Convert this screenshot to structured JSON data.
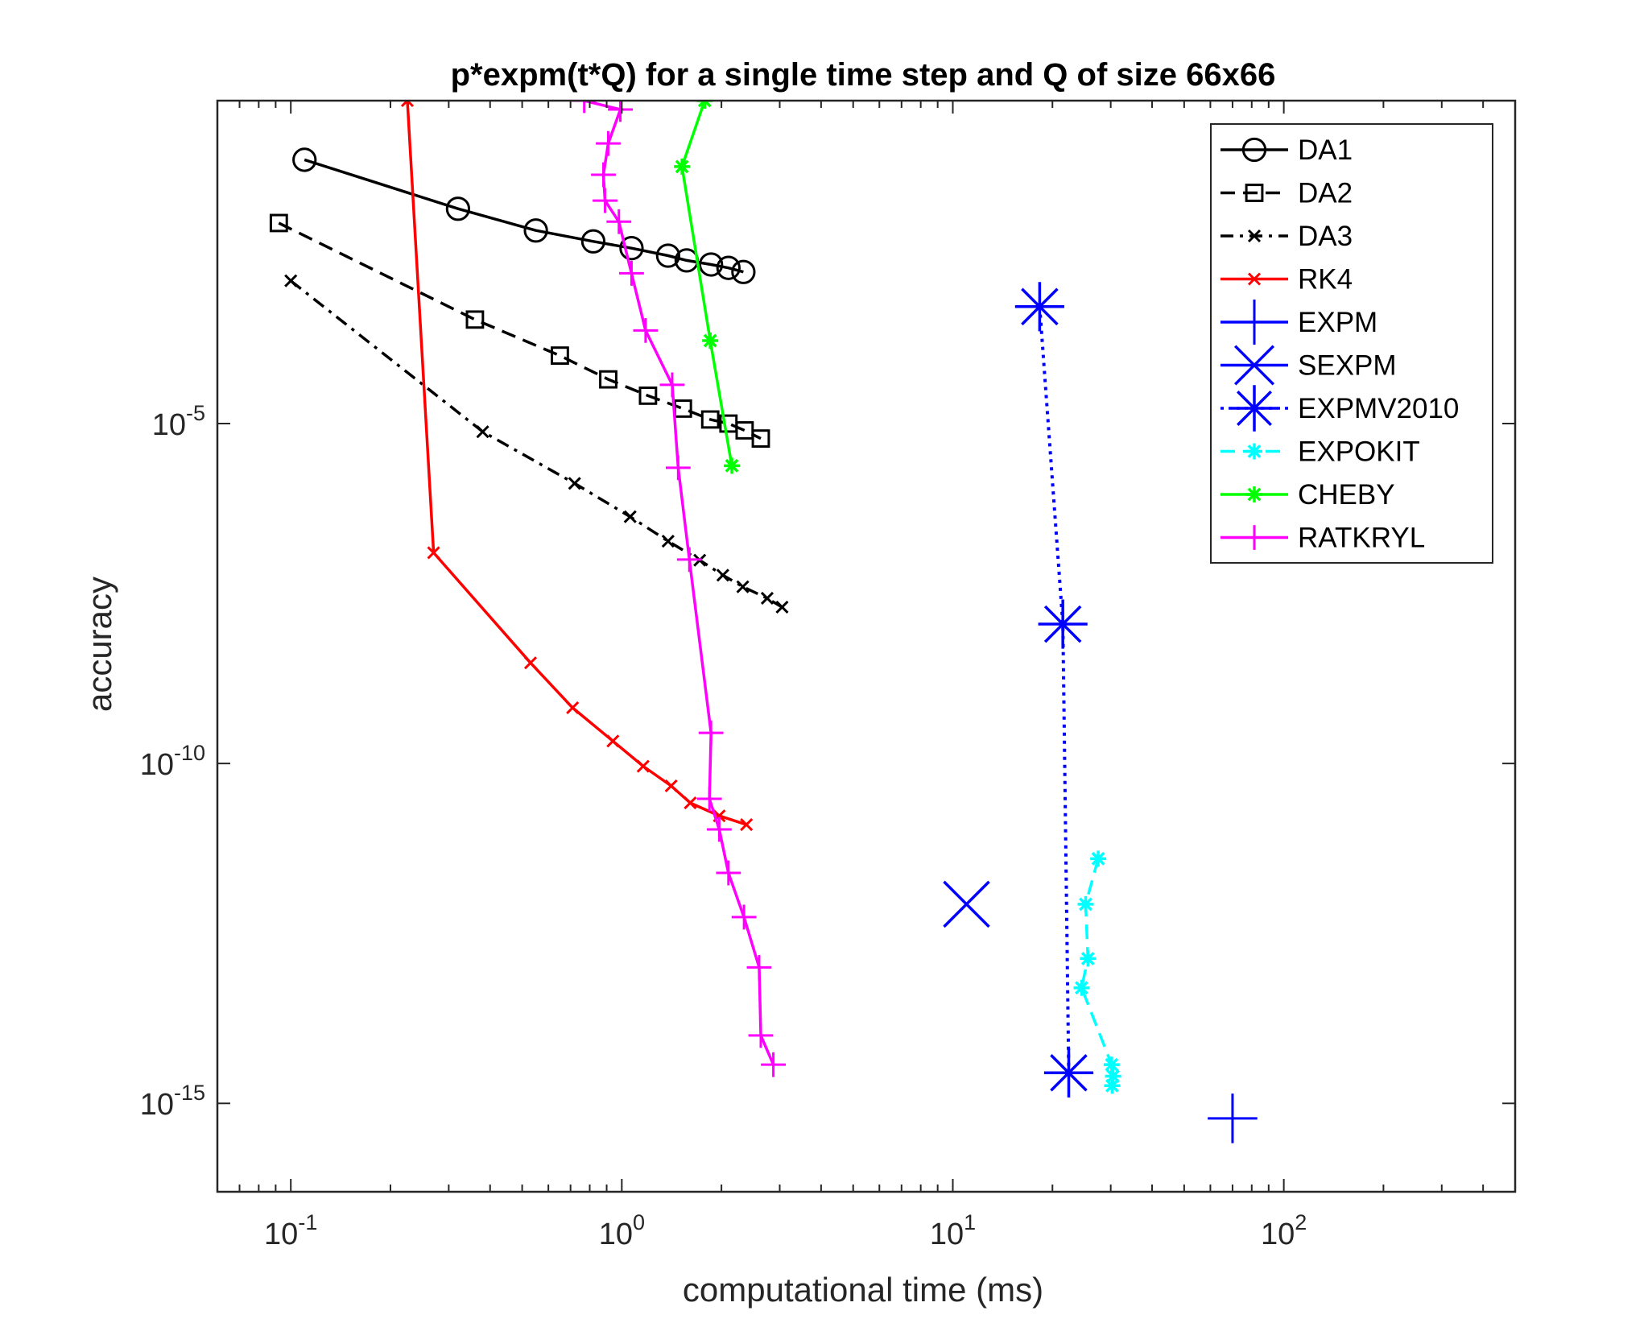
{
  "chart_data": {
    "type": "line",
    "title": "p*expm(t*Q) for a single time step and Q of size 66x66",
    "xlabel": "computational time (ms)",
    "ylabel": "accuracy",
    "xscale": "log",
    "yscale": "log",
    "xlim": [
      0.06,
      500
    ],
    "ylim_exp": [
      -16.3,
      -0.25
    ],
    "x_ticks": [
      {
        "value": 0.1,
        "base": "10",
        "exp": "-1"
      },
      {
        "value": 1,
        "base": "10",
        "exp": "0"
      },
      {
        "value": 10,
        "base": "10",
        "exp": "1"
      },
      {
        "value": 100,
        "base": "10",
        "exp": "2"
      }
    ],
    "y_ticks": [
      {
        "exp_value": -5,
        "base": "10",
        "exp": "-5"
      },
      {
        "exp_value": -10,
        "base": "10",
        "exp": "-10"
      },
      {
        "exp_value": -15,
        "base": "10",
        "exp": "-15"
      }
    ],
    "legend_position": "top-right",
    "series": [
      {
        "name": "DA1",
        "color": "#000000",
        "dash": "solid",
        "marker": "circle",
        "x": [
          0.11,
          0.32,
          0.55,
          0.82,
          1.07,
          1.38,
          1.57,
          1.86,
          2.1,
          2.33
        ],
        "y_exp": [
          -1.12,
          -1.84,
          -2.16,
          -2.32,
          -2.42,
          -2.53,
          -2.6,
          -2.66,
          -2.71,
          -2.77
        ]
      },
      {
        "name": "DA2",
        "color": "#000000",
        "dash": "dashed",
        "marker": "square",
        "x": [
          0.092,
          0.36,
          0.65,
          0.91,
          1.2,
          1.53,
          1.85,
          2.1,
          2.35,
          2.63
        ],
        "y_exp": [
          -2.05,
          -3.47,
          -4.0,
          -4.35,
          -4.59,
          -4.78,
          -4.94,
          -5.0,
          -5.1,
          -5.22
        ]
      },
      {
        "name": "DA3",
        "color": "#000000",
        "dash": "dashdot",
        "marker": "x",
        "x": [
          0.1,
          0.38,
          0.72,
          1.06,
          1.38,
          1.72,
          2.02,
          2.32,
          2.75,
          3.05
        ],
        "y_exp": [
          -2.9,
          -5.12,
          -5.88,
          -6.37,
          -6.73,
          -7.01,
          -7.23,
          -7.4,
          -7.57,
          -7.7
        ]
      },
      {
        "name": "RK4",
        "color": "#ff0000",
        "dash": "solid",
        "marker": "x",
        "x": [
          0.225,
          0.27,
          0.53,
          0.71,
          0.94,
          1.16,
          1.41,
          1.61,
          1.97,
          2.38
        ],
        "y_exp": [
          -0.25,
          -6.9,
          -8.52,
          -9.18,
          -9.67,
          -10.04,
          -10.33,
          -10.58,
          -10.77,
          -10.9
        ]
      },
      {
        "name": "EXPM",
        "color": "#0000ff",
        "dash": "none",
        "marker": "plus",
        "x": [
          70
        ],
        "y_exp": [
          -15.22
        ]
      },
      {
        "name": "SEXPM",
        "color": "#0000ff",
        "dash": "none",
        "marker": "cross",
        "x": [
          11
        ],
        "y_exp": [
          -12.07
        ]
      },
      {
        "name": "EXPMV2010",
        "color": "#0000ff",
        "dash": "dotted",
        "marker": "asterisk",
        "x": [
          18.3,
          21.5,
          22.4
        ],
        "y_exp": [
          -3.28,
          -7.95,
          -14.55
        ]
      },
      {
        "name": "EXPOKIT",
        "color": "#00ffff",
        "dash": "dashed",
        "marker": "dot",
        "x": [
          27.5,
          25.2,
          25.6,
          24.5,
          30.2,
          30.5,
          30.3
        ],
        "y_exp": [
          -11.4,
          -12.07,
          -12.87,
          -13.3,
          -14.43,
          -14.6,
          -14.74
        ]
      },
      {
        "name": "CHEBY",
        "color": "#00ff00",
        "dash": "solid",
        "marker": "dot",
        "x": [
          1.78,
          1.52,
          1.85,
          2.15
        ],
        "y_exp": [
          -0.25,
          -1.22,
          -3.78,
          -5.62
        ]
      },
      {
        "name": "RATKRYL",
        "color": "#ff00ff",
        "dash": "solid",
        "marker": "plus",
        "x": [
          0.77,
          0.99,
          0.91,
          0.88,
          0.89,
          0.98,
          1.07,
          1.18,
          1.42,
          1.48,
          1.6,
          1.86,
          1.84,
          1.97,
          2.1,
          2.34,
          2.6,
          2.63,
          2.87
        ],
        "y_exp": [
          -0.25,
          -0.38,
          -0.88,
          -1.34,
          -1.72,
          -2.03,
          -2.79,
          -3.63,
          -4.43,
          -5.65,
          -7.0,
          -9.55,
          -10.52,
          -10.97,
          -11.61,
          -12.26,
          -13.0,
          -14.0,
          -14.43
        ]
      }
    ]
  }
}
